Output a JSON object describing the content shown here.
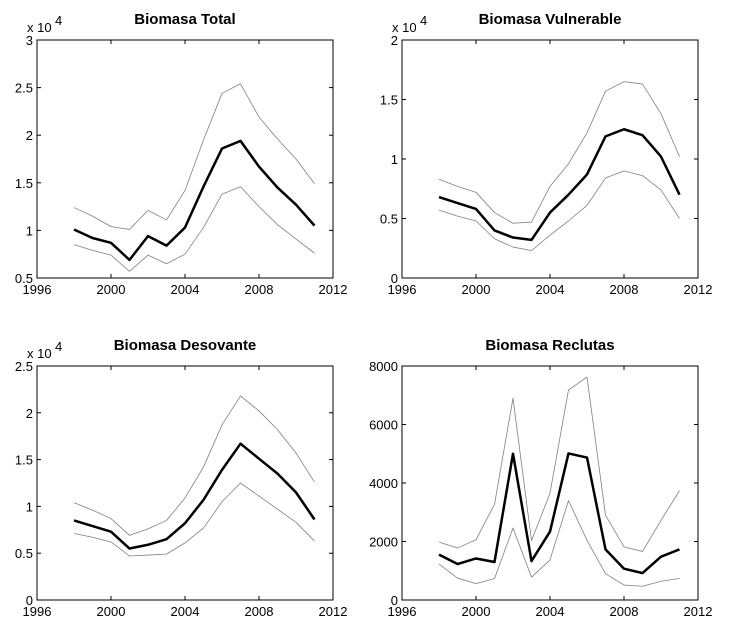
{
  "chart_data": [
    {
      "type": "line",
      "title": "Biomasa Total",
      "y_multiplier": {
        "text": "x 10",
        "exponent": "4"
      },
      "x": [
        1998,
        1999,
        2000,
        2001,
        2002,
        2003,
        2004,
        2005,
        2006,
        2007,
        2008,
        2009,
        2010,
        2011
      ],
      "xlim": [
        1996,
        2012
      ],
      "xticks": [
        1996,
        2000,
        2004,
        2008,
        2012
      ],
      "ylim": [
        0.5,
        3
      ],
      "yticks": [
        0.5,
        1,
        1.5,
        2,
        2.5,
        3
      ],
      "series": [
        {
          "color": "#808080",
          "values": [
            1.24,
            1.15,
            1.04,
            1.01,
            1.21,
            1.11,
            1.42,
            1.95,
            2.44,
            2.54,
            2.19,
            1.96,
            1.75,
            1.49
          ]
        },
        {
          "color": "#808080",
          "values": [
            0.85,
            0.79,
            0.74,
            0.57,
            0.74,
            0.65,
            0.75,
            1.03,
            1.38,
            1.46,
            1.25,
            1.06,
            0.91,
            0.76
          ]
        },
        {
          "color": "#000000",
          "values": [
            1.01,
            0.92,
            0.87,
            0.69,
            0.94,
            0.84,
            1.03,
            1.46,
            1.86,
            1.94,
            1.67,
            1.45,
            1.27,
            1.05
          ]
        }
      ]
    },
    {
      "type": "line",
      "title": "Biomasa Vulnerable",
      "y_multiplier": {
        "text": "x 10",
        "exponent": "4"
      },
      "x": [
        1998,
        1999,
        2000,
        2001,
        2002,
        2003,
        2004,
        2005,
        2006,
        2007,
        2008,
        2009,
        2010,
        2011
      ],
      "xlim": [
        1996,
        2012
      ],
      "xticks": [
        1996,
        2000,
        2004,
        2008,
        2012
      ],
      "ylim": [
        0,
        2
      ],
      "yticks": [
        0,
        0.5,
        1,
        1.5,
        2
      ],
      "series": [
        {
          "color": "#808080",
          "values": [
            0.83,
            0.77,
            0.72,
            0.55,
            0.46,
            0.47,
            0.77,
            0.96,
            1.22,
            1.57,
            1.65,
            1.63,
            1.38,
            1.02
          ]
        },
        {
          "color": "#808080",
          "values": [
            0.57,
            0.52,
            0.48,
            0.33,
            0.26,
            0.23,
            0.36,
            0.48,
            0.61,
            0.84,
            0.9,
            0.86,
            0.74,
            0.5
          ]
        },
        {
          "color": "#000000",
          "values": [
            0.68,
            0.63,
            0.58,
            0.4,
            0.34,
            0.32,
            0.55,
            0.7,
            0.87,
            1.19,
            1.25,
            1.2,
            1.02,
            0.7
          ]
        }
      ]
    },
    {
      "type": "line",
      "title": "Biomasa Desovante",
      "y_multiplier": {
        "text": "x 10",
        "exponent": "4"
      },
      "x": [
        1998,
        1999,
        2000,
        2001,
        2002,
        2003,
        2004,
        2005,
        2006,
        2007,
        2008,
        2009,
        2010,
        2011
      ],
      "xlim": [
        1996,
        2012
      ],
      "xticks": [
        1996,
        2000,
        2004,
        2008,
        2012
      ],
      "ylim": [
        0,
        2.5
      ],
      "yticks": [
        0,
        0.5,
        1,
        1.5,
        2,
        2.5
      ],
      "series": [
        {
          "color": "#808080",
          "values": [
            1.04,
            0.96,
            0.87,
            0.69,
            0.76,
            0.85,
            1.09,
            1.42,
            1.87,
            2.18,
            2.02,
            1.82,
            1.57,
            1.26
          ]
        },
        {
          "color": "#808080",
          "values": [
            0.71,
            0.67,
            0.62,
            0.47,
            0.48,
            0.49,
            0.61,
            0.77,
            1.05,
            1.25,
            1.11,
            0.97,
            0.83,
            0.63
          ]
        },
        {
          "color": "#000000",
          "values": [
            0.85,
            0.79,
            0.73,
            0.55,
            0.59,
            0.65,
            0.82,
            1.07,
            1.39,
            1.67,
            1.51,
            1.35,
            1.15,
            0.86
          ]
        }
      ]
    },
    {
      "type": "line",
      "title": "Biomasa Reclutas",
      "x": [
        1998,
        1999,
        2000,
        2001,
        2002,
        2003,
        2004,
        2005,
        2006,
        2007,
        2008,
        2009,
        2010,
        2011
      ],
      "xlim": [
        1996,
        2012
      ],
      "xticks": [
        1996,
        2000,
        2004,
        2008,
        2012
      ],
      "ylim": [
        0,
        8000
      ],
      "yticks": [
        0,
        2000,
        4000,
        6000,
        8000
      ],
      "series": [
        {
          "color": "#808080",
          "values": [
            1980,
            1780,
            2060,
            3270,
            6900,
            2030,
            3650,
            7180,
            7620,
            2900,
            1820,
            1660,
            2720,
            3740
          ]
        },
        {
          "color": "#808080",
          "values": [
            1230,
            750,
            560,
            730,
            2460,
            780,
            1370,
            3400,
            2040,
            900,
            510,
            470,
            640,
            740
          ]
        },
        {
          "color": "#000000",
          "values": [
            1550,
            1230,
            1420,
            1300,
            5000,
            1330,
            2340,
            5010,
            4870,
            1730,
            1070,
            920,
            1480,
            1730
          ]
        }
      ]
    }
  ]
}
